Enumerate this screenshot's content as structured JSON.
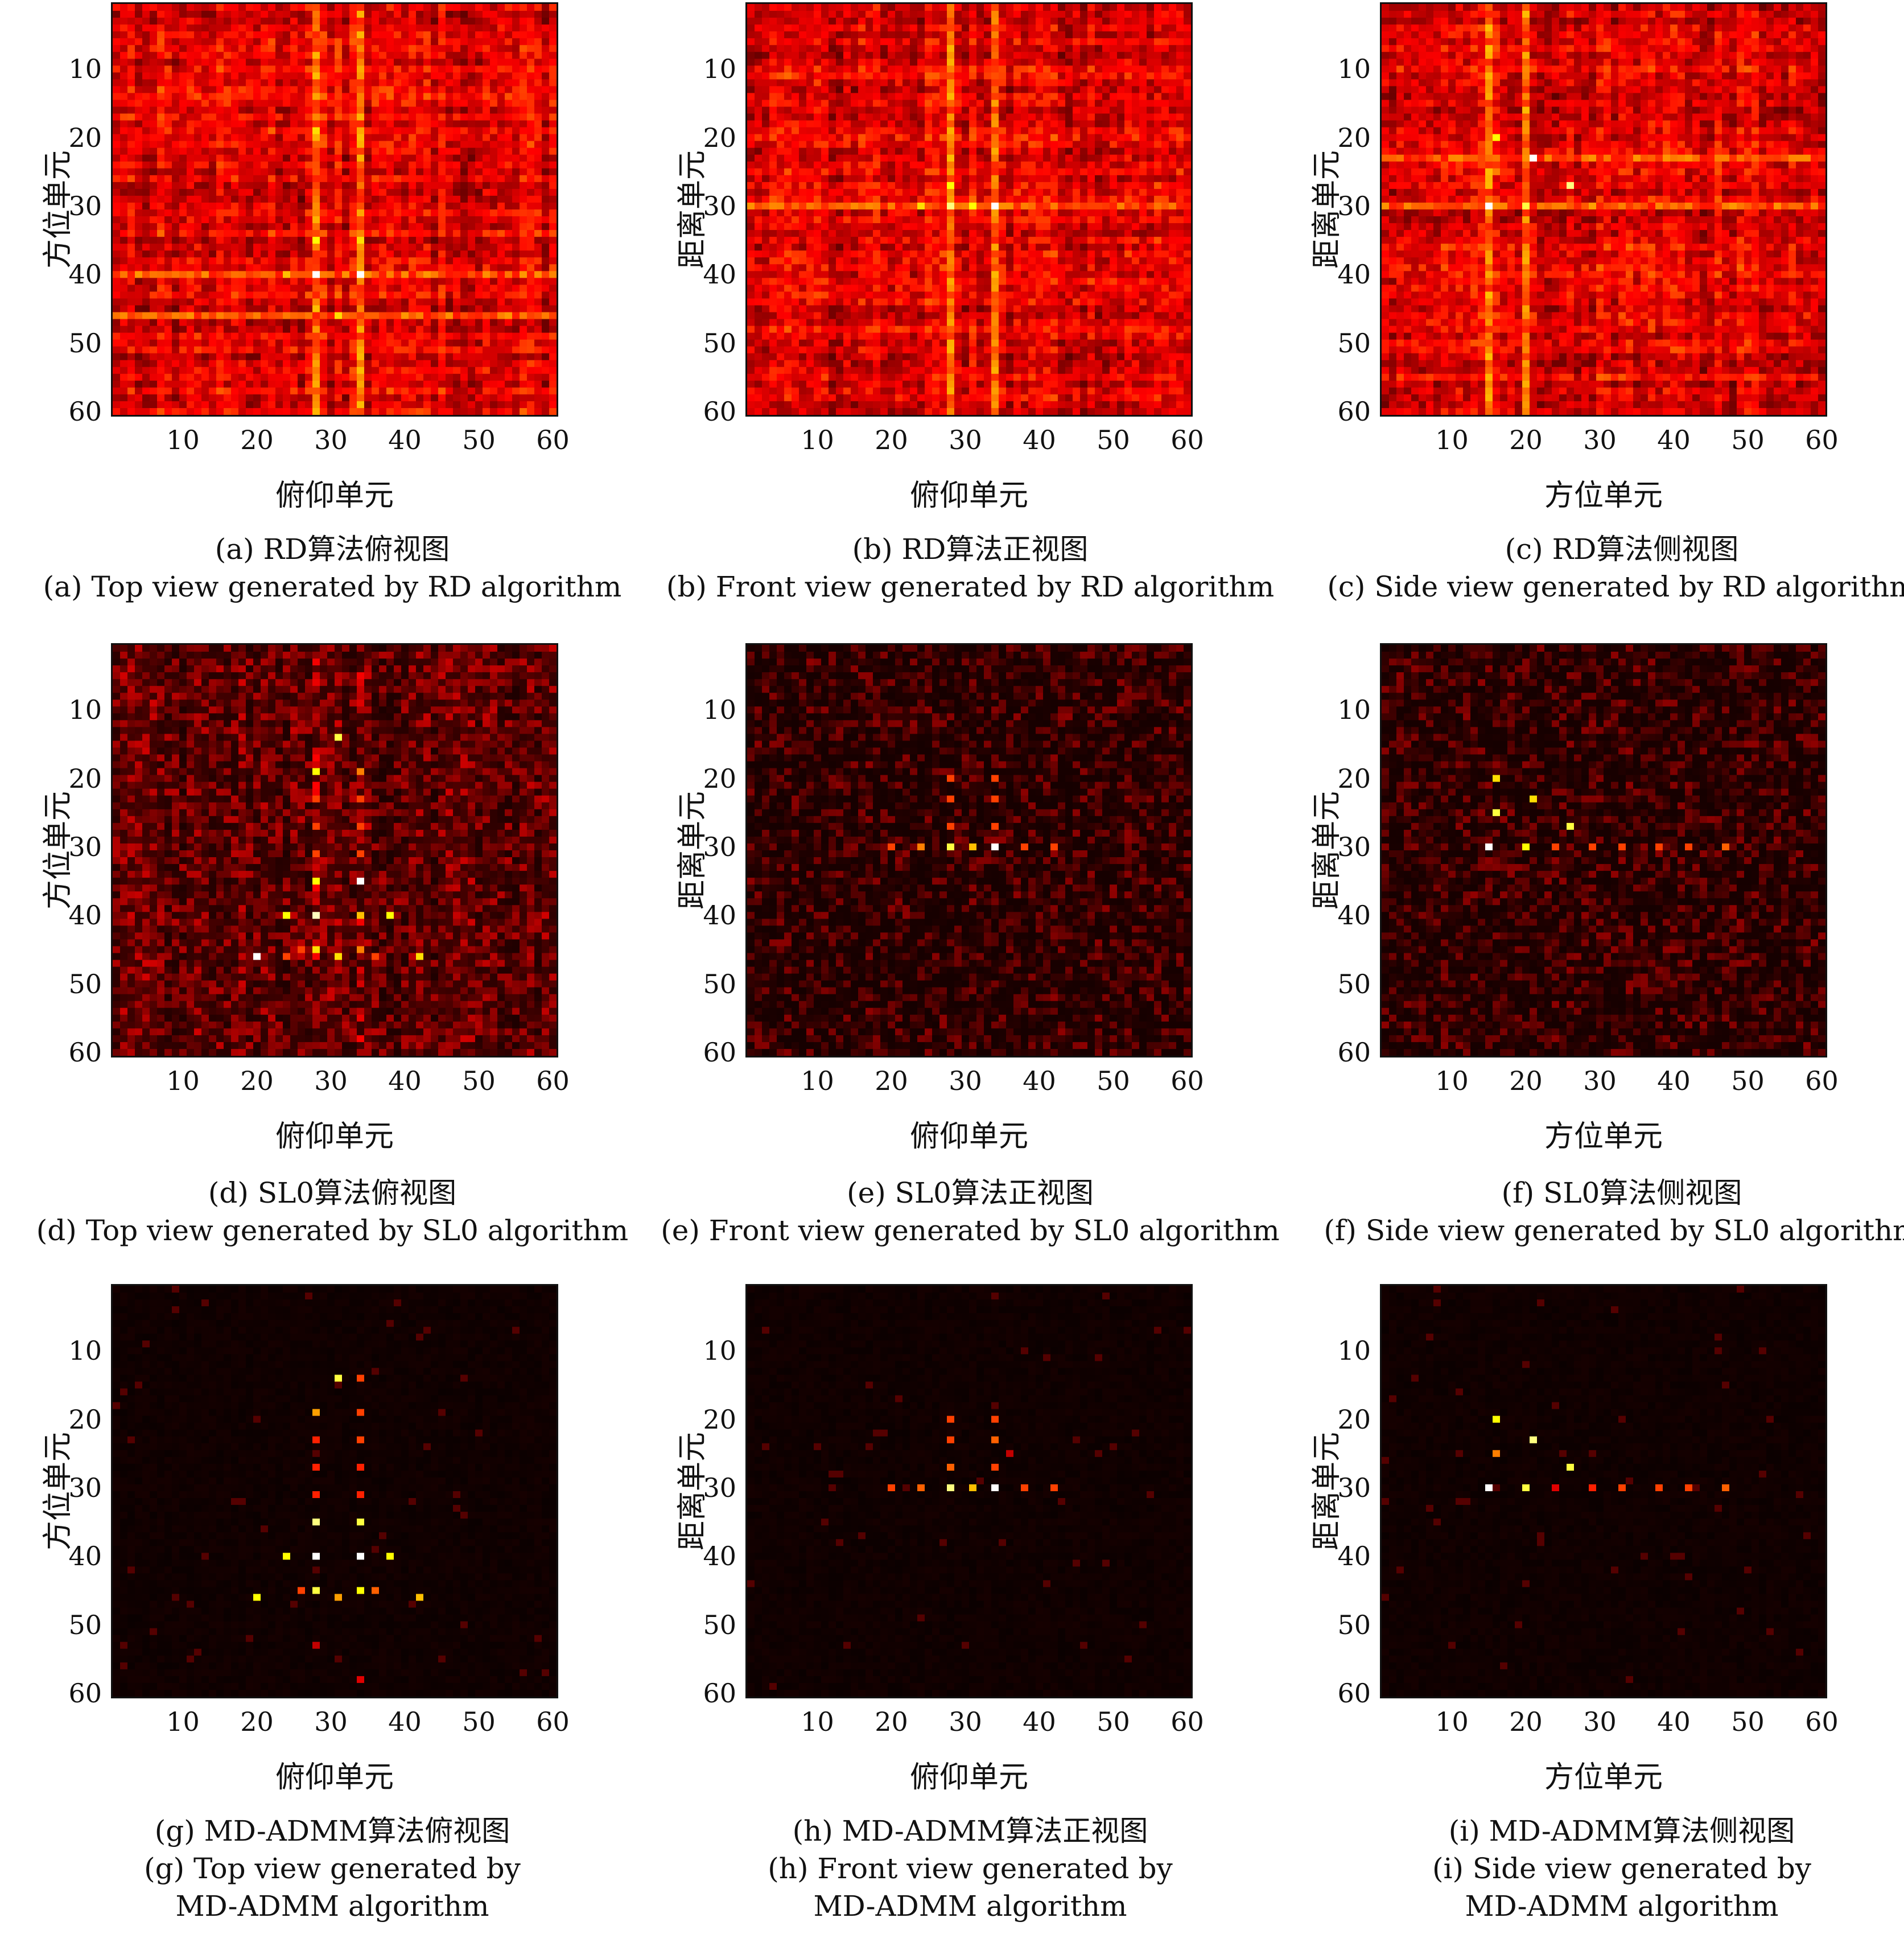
{
  "panels": [
    {
      "id": "a",
      "xlabel": "俯仰单元",
      "ylabel": "方位单元",
      "cap_cn": "(a) RD算法俯视图",
      "cap_en": [
        "(a) Top view generated by RD algorithm"
      ],
      "chart_data": {
        "type": "heatmap",
        "grid": [
          60,
          60
        ],
        "xlim": [
          1,
          60
        ],
        "ylim": [
          1,
          60
        ],
        "xticks": [
          10,
          20,
          30,
          40,
          50,
          60
        ],
        "yticks": [
          10,
          20,
          30,
          40,
          50,
          60
        ],
        "background": "noisy-high",
        "lines": {
          "cols": [
            28,
            34
          ],
          "rows": [
            40,
            46
          ]
        },
        "peaks": [
          [
            28,
            2,
            0.5
          ],
          [
            34,
            2,
            0.5
          ],
          [
            28,
            14,
            0.6
          ],
          [
            34,
            14,
            0.6
          ],
          [
            28,
            19,
            0.75
          ],
          [
            34,
            19,
            0.5
          ],
          [
            28,
            23,
            0.5
          ],
          [
            34,
            23,
            0.5
          ],
          [
            28,
            27,
            0.5
          ],
          [
            34,
            27,
            0.55
          ],
          [
            28,
            31,
            0.55
          ],
          [
            34,
            31,
            0.5
          ],
          [
            28,
            35,
            0.8
          ],
          [
            34,
            35,
            0.75
          ],
          [
            28,
            40,
            1.0
          ],
          [
            34,
            40,
            1.0
          ],
          [
            24,
            40,
            0.7
          ],
          [
            38,
            40,
            0.6
          ],
          [
            20,
            46,
            0.6
          ],
          [
            24,
            46,
            0.5
          ],
          [
            26,
            46,
            0.55
          ],
          [
            28,
            45,
            0.7
          ],
          [
            31,
            46,
            0.75
          ],
          [
            34,
            45,
            0.6
          ],
          [
            36,
            46,
            0.55
          ],
          [
            42,
            46,
            0.6
          ],
          [
            34,
            58,
            0.5
          ]
        ]
      }
    },
    {
      "id": "b",
      "xlabel": "俯仰单元",
      "ylabel": "距离单元",
      "cap_cn": "(b) RD算法正视图",
      "cap_en": [
        "(b) Front view generated by RD algorithm"
      ],
      "chart_data": {
        "type": "heatmap",
        "grid": [
          60,
          60
        ],
        "xlim": [
          1,
          60
        ],
        "ylim": [
          1,
          60
        ],
        "xticks": [
          10,
          20,
          30,
          40,
          50,
          60
        ],
        "yticks": [
          10,
          20,
          30,
          40,
          50,
          60
        ],
        "background": "noisy-high",
        "lines": {
          "cols": [
            28,
            34
          ],
          "rows": [
            30
          ]
        },
        "peaks": [
          [
            28,
            20,
            0.6
          ],
          [
            34,
            20,
            0.55
          ],
          [
            28,
            23,
            0.7
          ],
          [
            34,
            23,
            0.6
          ],
          [
            28,
            27,
            0.8
          ],
          [
            34,
            27,
            0.6
          ],
          [
            20,
            30,
            0.6
          ],
          [
            24,
            30,
            0.75
          ],
          [
            28,
            30,
            0.9
          ],
          [
            31,
            30,
            0.8
          ],
          [
            34,
            30,
            1.0
          ],
          [
            38,
            30,
            0.6
          ],
          [
            42,
            30,
            0.55
          ]
        ]
      }
    },
    {
      "id": "c",
      "xlabel": "方位单元",
      "ylabel": "距离单元",
      "cap_cn": "(c) RD算法侧视图",
      "cap_en": [
        "(c) Side view generated by RD algorithm"
      ],
      "chart_data": {
        "type": "heatmap",
        "grid": [
          60,
          60
        ],
        "xlim": [
          1,
          60
        ],
        "ylim": [
          1,
          60
        ],
        "xticks": [
          10,
          20,
          30,
          40,
          50,
          60
        ],
        "yticks": [
          10,
          20,
          30,
          40,
          50,
          60
        ],
        "background": "noisy-high",
        "lines": {
          "cols": [
            15,
            20
          ],
          "rows": [
            23,
            30
          ]
        },
        "peaks": [
          [
            16,
            20,
            0.8
          ],
          [
            21,
            23,
            1.0
          ],
          [
            16,
            25,
            0.6
          ],
          [
            26,
            27,
            0.9
          ],
          [
            15,
            30,
            1.0
          ],
          [
            20,
            30,
            0.85
          ],
          [
            24,
            30,
            0.6
          ],
          [
            29,
            30,
            0.65
          ],
          [
            33,
            30,
            0.6
          ],
          [
            38,
            30,
            0.6
          ],
          [
            42,
            30,
            0.6
          ],
          [
            47,
            30,
            0.6
          ]
        ]
      }
    },
    {
      "id": "d",
      "xlabel": "俯仰单元",
      "ylabel": "方位单元",
      "cap_cn": "(d) SL0算法俯视图",
      "cap_en": [
        "(d) Top view generated by SL0 algorithm"
      ],
      "chart_data": {
        "type": "heatmap",
        "grid": [
          60,
          60
        ],
        "xlim": [
          1,
          60
        ],
        "ylim": [
          1,
          60
        ],
        "xticks": [
          10,
          20,
          30,
          40,
          50,
          60
        ],
        "yticks": [
          10,
          20,
          30,
          40,
          50,
          60
        ],
        "background": "noisy-medium",
        "peaks": [
          [
            31,
            14,
            0.85
          ],
          [
            28,
            19,
            0.8
          ],
          [
            34,
            19,
            0.6
          ],
          [
            28,
            23,
            0.5
          ],
          [
            34,
            23,
            0.5
          ],
          [
            28,
            27,
            0.5
          ],
          [
            34,
            27,
            0.5
          ],
          [
            28,
            31,
            0.5
          ],
          [
            34,
            31,
            0.5
          ],
          [
            28,
            35,
            0.8
          ],
          [
            34,
            35,
            1.0
          ],
          [
            24,
            40,
            0.8
          ],
          [
            28,
            40,
            0.95
          ],
          [
            34,
            40,
            0.7
          ],
          [
            38,
            40,
            0.8
          ],
          [
            20,
            46,
            1.0
          ],
          [
            24,
            46,
            0.5
          ],
          [
            26,
            45,
            0.5
          ],
          [
            28,
            45,
            0.75
          ],
          [
            31,
            46,
            0.75
          ],
          [
            34,
            45,
            0.6
          ],
          [
            36,
            46,
            0.5
          ],
          [
            42,
            46,
            0.75
          ],
          [
            34,
            58,
            0.4
          ]
        ]
      }
    },
    {
      "id": "e",
      "xlabel": "俯仰单元",
      "ylabel": "距离单元",
      "cap_cn": "(e) SL0算法正视图",
      "cap_en": [
        "(e) Front view generated by SL0 algorithm"
      ],
      "chart_data": {
        "type": "heatmap",
        "grid": [
          60,
          60
        ],
        "xlim": [
          1,
          60
        ],
        "ylim": [
          1,
          60
        ],
        "xticks": [
          10,
          20,
          30,
          40,
          50,
          60
        ],
        "yticks": [
          10,
          20,
          30,
          40,
          50,
          60
        ],
        "background": "noisy-low",
        "peaks": [
          [
            28,
            20,
            0.5
          ],
          [
            34,
            20,
            0.5
          ],
          [
            28,
            23,
            0.5
          ],
          [
            34,
            23,
            0.5
          ],
          [
            28,
            27,
            0.5
          ],
          [
            34,
            27,
            0.5
          ],
          [
            20,
            30,
            0.5
          ],
          [
            24,
            30,
            0.6
          ],
          [
            28,
            30,
            0.85
          ],
          [
            31,
            30,
            0.7
          ],
          [
            34,
            30,
            1.0
          ],
          [
            38,
            30,
            0.5
          ],
          [
            42,
            30,
            0.5
          ]
        ]
      }
    },
    {
      "id": "f",
      "xlabel": "方位单元",
      "ylabel": "距离单元",
      "cap_cn": "(f) SL0算法侧视图",
      "cap_en": [
        "(f) Side view generated by SL0 algorithm"
      ],
      "chart_data": {
        "type": "heatmap",
        "grid": [
          60,
          60
        ],
        "xlim": [
          1,
          60
        ],
        "ylim": [
          1,
          60
        ],
        "xticks": [
          10,
          20,
          30,
          40,
          50,
          60
        ],
        "yticks": [
          10,
          20,
          30,
          40,
          50,
          60
        ],
        "background": "noisy-low",
        "peaks": [
          [
            16,
            20,
            0.75
          ],
          [
            21,
            23,
            0.75
          ],
          [
            16,
            25,
            0.85
          ],
          [
            26,
            27,
            0.85
          ],
          [
            15,
            30,
            1.0
          ],
          [
            20,
            30,
            0.8
          ],
          [
            24,
            30,
            0.5
          ],
          [
            29,
            30,
            0.5
          ],
          [
            33,
            30,
            0.5
          ],
          [
            38,
            30,
            0.5
          ],
          [
            42,
            30,
            0.5
          ],
          [
            47,
            30,
            0.55
          ]
        ]
      }
    },
    {
      "id": "g",
      "xlabel": "俯仰单元",
      "ylabel": "方位单元",
      "cap_cn": "(g) MD-ADMM算法俯视图",
      "cap_en": [
        "(g) Top view generated by",
        "MD-ADMM algorithm"
      ],
      "chart_data": {
        "type": "heatmap",
        "grid": [
          60,
          60
        ],
        "xlim": [
          1,
          60
        ],
        "ylim": [
          1,
          60
        ],
        "xticks": [
          10,
          20,
          30,
          40,
          50,
          60
        ],
        "yticks": [
          10,
          20,
          30,
          40,
          50,
          60
        ],
        "background": "clean",
        "peaks": [
          [
            31,
            14,
            0.85
          ],
          [
            34,
            14,
            0.5
          ],
          [
            28,
            19,
            0.65
          ],
          [
            34,
            19,
            0.5
          ],
          [
            28,
            23,
            0.45
          ],
          [
            34,
            23,
            0.5
          ],
          [
            28,
            27,
            0.45
          ],
          [
            34,
            27,
            0.45
          ],
          [
            28,
            31,
            0.45
          ],
          [
            34,
            31,
            0.45
          ],
          [
            28,
            35,
            0.9
          ],
          [
            34,
            35,
            0.85
          ],
          [
            24,
            40,
            0.8
          ],
          [
            28,
            40,
            1.0
          ],
          [
            34,
            40,
            1.0
          ],
          [
            38,
            40,
            0.8
          ],
          [
            20,
            46,
            0.8
          ],
          [
            26,
            45,
            0.5
          ],
          [
            28,
            45,
            0.85
          ],
          [
            31,
            46,
            0.65
          ],
          [
            34,
            45,
            0.8
          ],
          [
            36,
            45,
            0.55
          ],
          [
            42,
            46,
            0.7
          ],
          [
            28,
            53,
            0.3
          ],
          [
            34,
            58,
            0.35
          ]
        ]
      }
    },
    {
      "id": "h",
      "xlabel": "俯仰单元",
      "ylabel": "距离单元",
      "cap_cn": "(h) MD-ADMM算法正视图",
      "cap_en": [
        "(h) Front view generated by",
        "MD-ADMM algorithm"
      ],
      "chart_data": {
        "type": "heatmap",
        "grid": [
          60,
          60
        ],
        "xlim": [
          1,
          60
        ],
        "ylim": [
          1,
          60
        ],
        "xticks": [
          10,
          20,
          30,
          40,
          50,
          60
        ],
        "yticks": [
          10,
          20,
          30,
          40,
          50,
          60
        ],
        "background": "clean",
        "peaks": [
          [
            28,
            20,
            0.5
          ],
          [
            34,
            20,
            0.5
          ],
          [
            28,
            23,
            0.5
          ],
          [
            34,
            23,
            0.55
          ],
          [
            28,
            27,
            0.55
          ],
          [
            34,
            27,
            0.5
          ],
          [
            36,
            25,
            0.3
          ],
          [
            20,
            30,
            0.5
          ],
          [
            24,
            30,
            0.55
          ],
          [
            28,
            30,
            0.9
          ],
          [
            31,
            30,
            0.7
          ],
          [
            34,
            30,
            1.0
          ],
          [
            38,
            30,
            0.5
          ],
          [
            42,
            30,
            0.5
          ]
        ]
      }
    },
    {
      "id": "i",
      "xlabel": "方位单元",
      "ylabel": "距离单元",
      "cap_cn": "(i) MD-ADMM算法侧视图",
      "cap_en": [
        "(i) Side view generated by",
        "MD-ADMM algorithm"
      ],
      "chart_data": {
        "type": "heatmap",
        "grid": [
          60,
          60
        ],
        "xlim": [
          1,
          60
        ],
        "ylim": [
          1,
          60
        ],
        "xticks": [
          10,
          20,
          30,
          40,
          50,
          60
        ],
        "yticks": [
          10,
          20,
          30,
          40,
          50,
          60
        ],
        "background": "clean",
        "peaks": [
          [
            16,
            20,
            0.8
          ],
          [
            21,
            23,
            0.9
          ],
          [
            16,
            25,
            0.6
          ],
          [
            26,
            27,
            0.85
          ],
          [
            15,
            30,
            1.0
          ],
          [
            20,
            30,
            0.85
          ],
          [
            24,
            30,
            0.35
          ],
          [
            29,
            30,
            0.45
          ],
          [
            33,
            30,
            0.5
          ],
          [
            38,
            30,
            0.5
          ],
          [
            42,
            30,
            0.5
          ],
          [
            47,
            30,
            0.55
          ]
        ]
      }
    }
  ]
}
